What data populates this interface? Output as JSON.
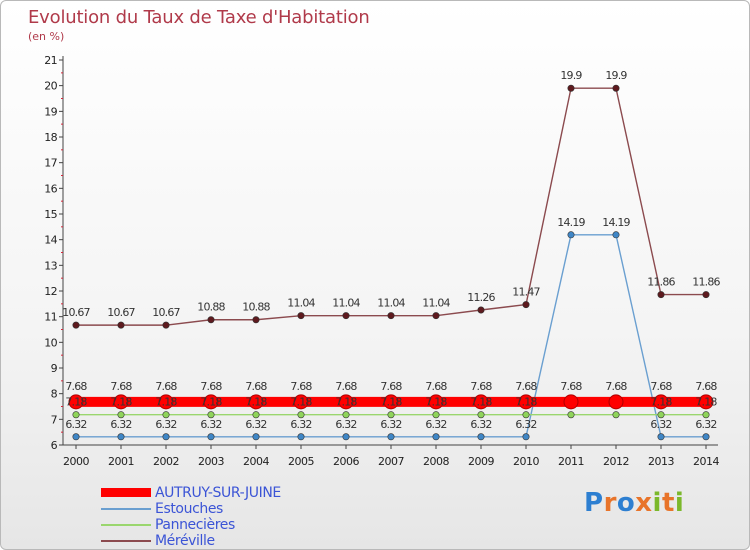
{
  "title": "Evolution du Taux de Taxe d'Habitation",
  "subtitle": "(en %)",
  "logo": {
    "text": "Proxiti",
    "colors": [
      "#2d7fd1",
      "#e8742a",
      "#2d7fd1",
      "#e8742a",
      "#7bb82b",
      "#e8742a",
      "#7bb82b"
    ]
  },
  "chart_data": {
    "type": "line",
    "x": [
      2000,
      2001,
      2002,
      2003,
      2004,
      2005,
      2006,
      2007,
      2008,
      2009,
      2010,
      2011,
      2012,
      2013,
      2014
    ],
    "ylim": [
      6,
      21
    ],
    "yticks": [
      6,
      7,
      8,
      9,
      10,
      11,
      12,
      13,
      14,
      15,
      16,
      17,
      18,
      19,
      20,
      21
    ],
    "legend_position": "bottom-left",
    "series": [
      {
        "name": "AUTRUY-SUR-JUINE",
        "color": "#ff0000",
        "values": [
          7.68,
          7.68,
          7.68,
          7.68,
          7.68,
          7.68,
          7.68,
          7.68,
          7.68,
          7.68,
          7.68,
          7.68,
          7.68,
          7.68,
          7.68
        ],
        "labels": [
          "7.68",
          "7.68",
          "7.68",
          "7.68",
          "7.68",
          "7.68",
          "7.68",
          "7.68",
          "7.68",
          "7.68",
          "7.68",
          "7.68",
          "7.68",
          "7.68",
          "7.68"
        ]
      },
      {
        "name": "Estouches",
        "color": "#6a9fd0",
        "values": [
          6.32,
          6.32,
          6.32,
          6.32,
          6.32,
          6.32,
          6.32,
          6.32,
          6.32,
          6.32,
          6.32,
          14.19,
          14.19,
          6.32,
          6.32
        ],
        "labels": [
          "6.32",
          "6.32",
          "6.32",
          "6.32",
          "6.32",
          "6.32",
          "6.32",
          "6.32",
          "6.32",
          "6.32",
          "6.32",
          "14.19",
          "14.19",
          "6.32",
          "6.32"
        ]
      },
      {
        "name": "Pannecières",
        "color": "#9ad66e",
        "values": [
          7.18,
          7.18,
          7.18,
          7.18,
          7.18,
          7.18,
          7.18,
          7.18,
          7.18,
          7.18,
          7.18,
          7.18,
          7.18,
          7.18,
          7.18
        ],
        "labels": [
          "7.18",
          "7.18",
          "7.18",
          "7.18",
          "7.18",
          "7.18",
          "7.18",
          "7.18",
          "7.18",
          "7.18",
          "7.18",
          "",
          "",
          "7.18",
          "7.18"
        ]
      },
      {
        "name": "Méréville",
        "color": "#8b4a4e",
        "values": [
          10.67,
          10.67,
          10.67,
          10.88,
          10.88,
          11.04,
          11.04,
          11.04,
          11.04,
          11.26,
          11.47,
          19.9,
          19.9,
          11.86,
          11.86
        ],
        "labels": [
          "10.67",
          "10.67",
          "10.67",
          "10.88",
          "10.88",
          "11.04",
          "11.04",
          "11.04",
          "11.04",
          "11.26",
          "11.47",
          "19.9",
          "19.9",
          "11.86",
          "11.86"
        ]
      }
    ]
  }
}
